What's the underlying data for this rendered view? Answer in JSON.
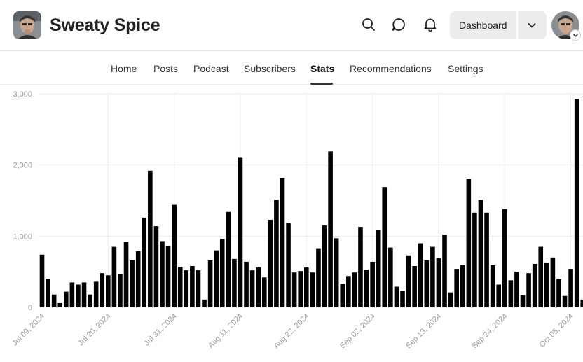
{
  "publication": {
    "name": "Sweaty Spice"
  },
  "header": {
    "dashboard_label": "Dashboard",
    "icons": [
      "search-icon",
      "chat-icon",
      "bell-icon",
      "chevron-down-icon"
    ]
  },
  "nav": {
    "items": [
      "Home",
      "Posts",
      "Podcast",
      "Subscribers",
      "Stats",
      "Recommendations",
      "Settings"
    ],
    "active": "Stats"
  },
  "colors": {
    "bar": "#000000",
    "grid": "#ebebeb",
    "tick": "#9a9a9a",
    "active_underline": "#333333"
  },
  "chart_data": {
    "type": "bar",
    "title": "",
    "xlabel": "",
    "ylabel": "",
    "ylim": [
      0,
      3000
    ],
    "yticks": [
      "0",
      "1,000",
      "2,000",
      "3,000"
    ],
    "xtick_labels": [
      "Jul 09, 2024",
      "Jul 20, 2024",
      "Jul 31, 2024",
      "Aug 11, 2024",
      "Aug 22, 2024",
      "Sep 02, 2024",
      "Sep 13, 2024",
      "Sep 24, 2024",
      "Oct 05, 2024"
    ],
    "start_date": "2024-07-09",
    "grid": true,
    "values": [
      740,
      400,
      180,
      60,
      220,
      350,
      320,
      350,
      180,
      360,
      480,
      450,
      850,
      470,
      920,
      660,
      790,
      1260,
      1920,
      1140,
      930,
      860,
      1440,
      570,
      520,
      580,
      520,
      110,
      660,
      800,
      960,
      1340,
      680,
      2110,
      640,
      520,
      560,
      420,
      1230,
      1510,
      1820,
      1180,
      490,
      510,
      560,
      490,
      830,
      1150,
      2190,
      970,
      330,
      440,
      490,
      1130,
      530,
      640,
      1090,
      1690,
      840,
      290,
      230,
      730,
      580,
      900,
      660,
      850,
      690,
      1020,
      210,
      540,
      590,
      1810,
      1330,
      1510,
      1330,
      590,
      320,
      1380,
      380,
      500,
      170,
      480,
      610,
      850,
      630,
      700,
      400,
      160,
      540,
      2930,
      110
    ]
  }
}
